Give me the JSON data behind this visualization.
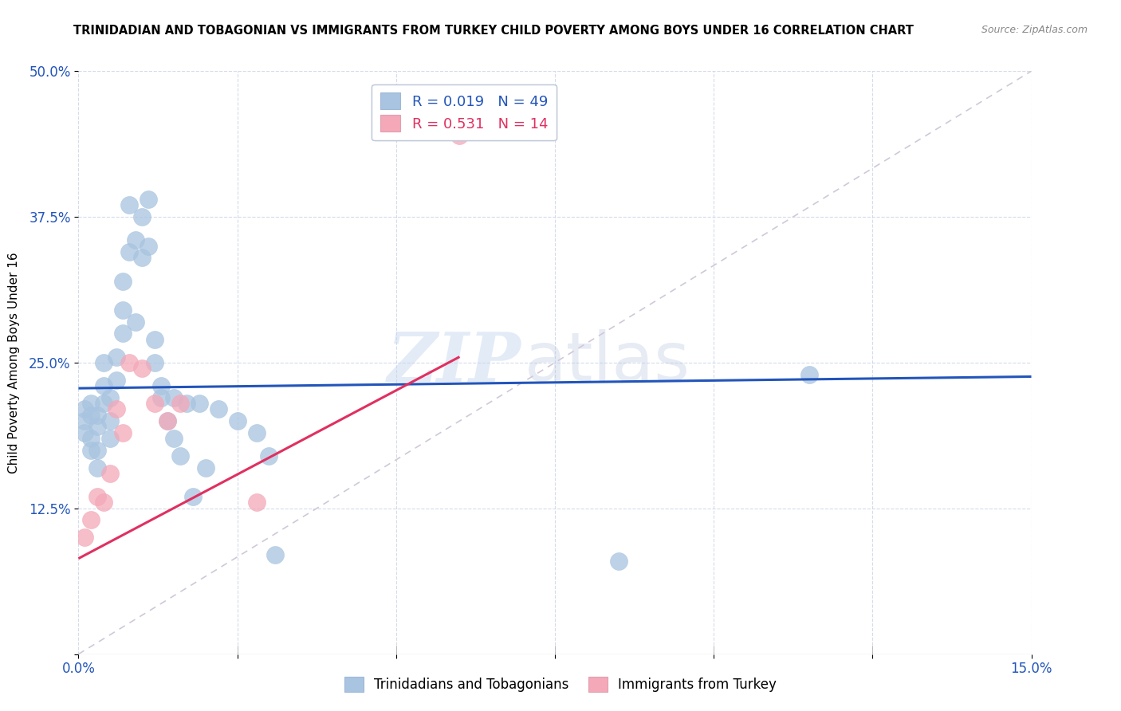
{
  "title": "TRINIDADIAN AND TOBAGONIAN VS IMMIGRANTS FROM TURKEY CHILD POVERTY AMONG BOYS UNDER 16 CORRELATION CHART",
  "source": "Source: ZipAtlas.com",
  "ylabel": "Child Poverty Among Boys Under 16",
  "xlim": [
    0.0,
    0.15
  ],
  "ylim": [
    0.0,
    0.5
  ],
  "xticks": [
    0.0,
    0.025,
    0.05,
    0.075,
    0.1,
    0.125,
    0.15
  ],
  "xticklabels": [
    "0.0%",
    "",
    "",
    "",
    "",
    "",
    "15.0%"
  ],
  "yticks": [
    0.0,
    0.125,
    0.25,
    0.375,
    0.5
  ],
  "yticklabels": [
    "",
    "12.5%",
    "25.0%",
    "37.5%",
    "50.0%"
  ],
  "blue_R": 0.019,
  "blue_N": 49,
  "pink_R": 0.531,
  "pink_N": 14,
  "blue_color": "#a8c4e0",
  "pink_color": "#f4a8b8",
  "blue_line_color": "#2255bb",
  "pink_line_color": "#e03060",
  "diag_line_color": "#d0c8d8",
  "watermark_zip": "ZIP",
  "watermark_atlas": "atlas",
  "legend_blue_label": "Trinidadians and Tobagonians",
  "legend_pink_label": "Immigrants from Turkey",
  "blue_x": [
    0.001,
    0.001,
    0.001,
    0.002,
    0.002,
    0.002,
    0.002,
    0.003,
    0.003,
    0.003,
    0.003,
    0.004,
    0.004,
    0.004,
    0.005,
    0.005,
    0.005,
    0.006,
    0.006,
    0.007,
    0.007,
    0.007,
    0.008,
    0.008,
    0.009,
    0.009,
    0.01,
    0.01,
    0.011,
    0.011,
    0.012,
    0.012,
    0.013,
    0.013,
    0.014,
    0.015,
    0.015,
    0.016,
    0.017,
    0.018,
    0.019,
    0.02,
    0.022,
    0.025,
    0.028,
    0.03,
    0.031,
    0.085,
    0.115
  ],
  "blue_y": [
    0.21,
    0.2,
    0.19,
    0.215,
    0.205,
    0.185,
    0.175,
    0.205,
    0.195,
    0.175,
    0.16,
    0.215,
    0.25,
    0.23,
    0.2,
    0.22,
    0.185,
    0.255,
    0.235,
    0.275,
    0.32,
    0.295,
    0.345,
    0.385,
    0.355,
    0.285,
    0.375,
    0.34,
    0.35,
    0.39,
    0.27,
    0.25,
    0.23,
    0.22,
    0.2,
    0.22,
    0.185,
    0.17,
    0.215,
    0.135,
    0.215,
    0.16,
    0.21,
    0.2,
    0.19,
    0.17,
    0.085,
    0.08,
    0.24
  ],
  "pink_x": [
    0.001,
    0.002,
    0.003,
    0.004,
    0.005,
    0.006,
    0.007,
    0.008,
    0.01,
    0.012,
    0.014,
    0.016,
    0.028,
    0.06
  ],
  "pink_y": [
    0.1,
    0.115,
    0.135,
    0.13,
    0.155,
    0.21,
    0.19,
    0.25,
    0.245,
    0.215,
    0.2,
    0.215,
    0.13,
    0.445
  ],
  "blue_line_x0": 0.0,
  "blue_line_y0": 0.228,
  "blue_line_x1": 0.15,
  "blue_line_y1": 0.238,
  "pink_line_x0": 0.0,
  "pink_line_y0": 0.082,
  "pink_line_x1": 0.06,
  "pink_line_y1": 0.255
}
